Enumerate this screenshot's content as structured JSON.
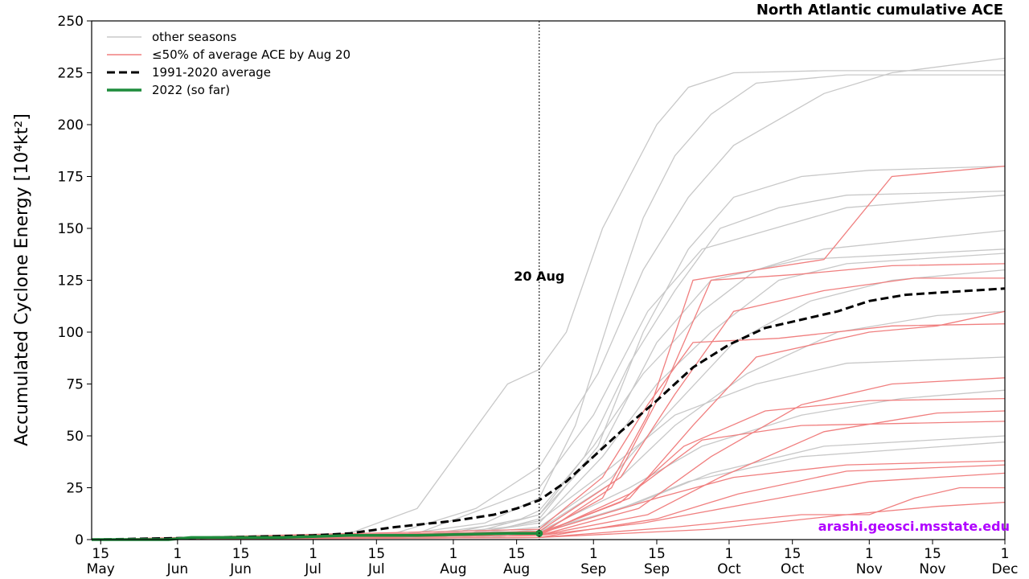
{
  "chart_data": {
    "type": "line",
    "title": "North Atlantic cumulative ACE",
    "ylabel": "Accumulated Cyclone Energy [10⁴kt²]",
    "xlabel": "",
    "ylim": [
      0,
      250
    ],
    "xlim_day_of_year": [
      133,
      335
    ],
    "grid": false,
    "legend_position": "top-left",
    "yticks": [
      "0",
      "25",
      "50",
      "75",
      "100",
      "125",
      "150",
      "175",
      "200",
      "225",
      "250"
    ],
    "xticks": [
      {
        "day": 135,
        "top": "15",
        "bottom": "May"
      },
      {
        "day": 152,
        "top": "1",
        "bottom": "Jun"
      },
      {
        "day": 166,
        "top": "15",
        "bottom": "Jun"
      },
      {
        "day": 182,
        "top": "1",
        "bottom": "Jul"
      },
      {
        "day": 196,
        "top": "15",
        "bottom": "Jul"
      },
      {
        "day": 213,
        "top": "1",
        "bottom": "Aug"
      },
      {
        "day": 227,
        "top": "15",
        "bottom": "Aug"
      },
      {
        "day": 244,
        "top": "1",
        "bottom": "Sep"
      },
      {
        "day": 258,
        "top": "15",
        "bottom": "Sep"
      },
      {
        "day": 274,
        "top": "1",
        "bottom": "Oct"
      },
      {
        "day": 288,
        "top": "15",
        "bottom": "Oct"
      },
      {
        "day": 305,
        "top": "1",
        "bottom": "Nov"
      },
      {
        "day": 319,
        "top": "15",
        "bottom": "Nov"
      },
      {
        "day": 335,
        "top": "1",
        "bottom": "Dec"
      }
    ],
    "annotation": {
      "text": "20 Aug",
      "day": 232
    },
    "credit": "arashi.geosci.msstate.edu",
    "colors": {
      "other": "#c8c8c8",
      "low": "#f07f7f",
      "average": "#000000",
      "current": "#1e8c3c"
    },
    "legend": [
      {
        "label": "other seasons",
        "style": "other"
      },
      {
        "label": "≤50% of average ACE by Aug 20",
        "style": "low"
      },
      {
        "label": "1991-2020 average",
        "style": "average"
      },
      {
        "label": "2022 (so far)",
        "style": "current"
      }
    ],
    "average": {
      "name": "1991-2020 average",
      "points": [
        [
          133,
          0
        ],
        [
          160,
          1
        ],
        [
          182,
          2
        ],
        [
          190,
          3
        ],
        [
          200,
          6
        ],
        [
          213,
          9
        ],
        [
          222,
          12
        ],
        [
          227,
          15
        ],
        [
          232,
          19
        ],
        [
          238,
          28
        ],
        [
          244,
          40
        ],
        [
          250,
          52
        ],
        [
          258,
          67
        ],
        [
          266,
          83
        ],
        [
          274,
          94
        ],
        [
          282,
          102
        ],
        [
          290,
          106
        ],
        [
          298,
          110
        ],
        [
          305,
          115
        ],
        [
          313,
          118
        ],
        [
          320,
          119
        ],
        [
          335,
          121
        ]
      ]
    },
    "current": {
      "name": "2022 (so far)",
      "points": [
        [
          133,
          0
        ],
        [
          150,
          0
        ],
        [
          155,
          1
        ],
        [
          175,
          1
        ],
        [
          190,
          2
        ],
        [
          205,
          2
        ],
        [
          215,
          2.5
        ],
        [
          225,
          3
        ],
        [
          232,
          3
        ]
      ]
    },
    "other_seasons": [
      [
        [
          133,
          0
        ],
        [
          190,
          3
        ],
        [
          205,
          15
        ],
        [
          215,
          45
        ],
        [
          225,
          75
        ],
        [
          232,
          82
        ],
        [
          238,
          100
        ],
        [
          246,
          150
        ],
        [
          252,
          175
        ],
        [
          258,
          200
        ],
        [
          265,
          218
        ],
        [
          275,
          225
        ],
        [
          295,
          226
        ],
        [
          335,
          226
        ]
      ],
      [
        [
          133,
          0
        ],
        [
          200,
          2
        ],
        [
          220,
          8
        ],
        [
          232,
          20
        ],
        [
          240,
          55
        ],
        [
          248,
          110
        ],
        [
          255,
          155
        ],
        [
          262,
          185
        ],
        [
          270,
          205
        ],
        [
          280,
          220
        ],
        [
          300,
          224
        ],
        [
          335,
          224
        ]
      ],
      [
        [
          133,
          0
        ],
        [
          200,
          3
        ],
        [
          218,
          15
        ],
        [
          232,
          35
        ],
        [
          245,
          80
        ],
        [
          255,
          130
        ],
        [
          265,
          165
        ],
        [
          275,
          190
        ],
        [
          295,
          215
        ],
        [
          310,
          225
        ],
        [
          335,
          232
        ]
      ],
      [
        [
          133,
          0
        ],
        [
          205,
          2
        ],
        [
          225,
          6
        ],
        [
          232,
          10
        ],
        [
          245,
          45
        ],
        [
          255,
          100
        ],
        [
          265,
          140
        ],
        [
          275,
          165
        ],
        [
          290,
          175
        ],
        [
          305,
          178
        ],
        [
          335,
          180
        ]
      ],
      [
        [
          133,
          0
        ],
        [
          205,
          2
        ],
        [
          225,
          8
        ],
        [
          232,
          12
        ],
        [
          242,
          40
        ],
        [
          252,
          85
        ],
        [
          262,
          120
        ],
        [
          272,
          150
        ],
        [
          285,
          160
        ],
        [
          300,
          166
        ],
        [
          335,
          168
        ]
      ],
      [
        [
          133,
          0
        ],
        [
          210,
          2
        ],
        [
          228,
          10
        ],
        [
          232,
          14
        ],
        [
          244,
          45
        ],
        [
          255,
          80
        ],
        [
          268,
          110
        ],
        [
          280,
          130
        ],
        [
          295,
          140
        ],
        [
          335,
          149
        ]
      ],
      [
        [
          133,
          0
        ],
        [
          210,
          1
        ],
        [
          232,
          8
        ],
        [
          246,
          40
        ],
        [
          258,
          75
        ],
        [
          270,
          100
        ],
        [
          285,
          125
        ],
        [
          300,
          133
        ],
        [
          335,
          138
        ]
      ],
      [
        [
          133,
          0
        ],
        [
          212,
          2
        ],
        [
          232,
          6
        ],
        [
          248,
          30
        ],
        [
          260,
          60
        ],
        [
          275,
          95
        ],
        [
          292,
          115
        ],
        [
          310,
          125
        ],
        [
          335,
          130
        ]
      ],
      [
        [
          133,
          0
        ],
        [
          215,
          1
        ],
        [
          232,
          5
        ],
        [
          250,
          30
        ],
        [
          262,
          55
        ],
        [
          278,
          80
        ],
        [
          298,
          100
        ],
        [
          320,
          108
        ],
        [
          335,
          110
        ]
      ],
      [
        [
          133,
          0
        ],
        [
          215,
          2
        ],
        [
          232,
          9
        ],
        [
          248,
          35
        ],
        [
          262,
          60
        ],
        [
          280,
          75
        ],
        [
          300,
          85
        ],
        [
          335,
          88
        ]
      ],
      [
        [
          133,
          0
        ],
        [
          218,
          1
        ],
        [
          232,
          4
        ],
        [
          252,
          25
        ],
        [
          268,
          45
        ],
        [
          290,
          60
        ],
        [
          312,
          68
        ],
        [
          335,
          72
        ]
      ],
      [
        [
          133,
          0
        ],
        [
          220,
          1
        ],
        [
          232,
          3
        ],
        [
          254,
          18
        ],
        [
          270,
          32
        ],
        [
          295,
          45
        ],
        [
          335,
          50
        ]
      ],
      [
        [
          133,
          0
        ],
        [
          222,
          1
        ],
        [
          232,
          4
        ],
        [
          250,
          15
        ],
        [
          265,
          28
        ],
        [
          290,
          40
        ],
        [
          335,
          47
        ]
      ],
      [
        [
          133,
          0
        ],
        [
          205,
          3
        ],
        [
          232,
          25
        ],
        [
          244,
          60
        ],
        [
          256,
          110
        ],
        [
          268,
          140
        ],
        [
          284,
          150
        ],
        [
          300,
          160
        ],
        [
          335,
          166
        ]
      ],
      [
        [
          133,
          0
        ],
        [
          215,
          2
        ],
        [
          232,
          12
        ],
        [
          246,
          45
        ],
        [
          258,
          95
        ],
        [
          270,
          125
        ],
        [
          290,
          135
        ],
        [
          335,
          140
        ]
      ]
    ],
    "low_seasons": [
      [
        [
          133,
          0
        ],
        [
          232,
          3
        ],
        [
          246,
          20
        ],
        [
          256,
          60
        ],
        [
          266,
          125
        ],
        [
          280,
          130
        ],
        [
          295,
          135
        ],
        [
          310,
          175
        ],
        [
          335,
          180
        ]
      ],
      [
        [
          133,
          0
        ],
        [
          232,
          2
        ],
        [
          248,
          25
        ],
        [
          260,
          75
        ],
        [
          270,
          125
        ],
        [
          290,
          128
        ],
        [
          310,
          132
        ],
        [
          335,
          133
        ]
      ],
      [
        [
          133,
          0
        ],
        [
          232,
          4
        ],
        [
          250,
          30
        ],
        [
          262,
          70
        ],
        [
          275,
          110
        ],
        [
          295,
          120
        ],
        [
          315,
          126
        ],
        [
          335,
          126
        ]
      ],
      [
        [
          133,
          0
        ],
        [
          232,
          3
        ],
        [
          252,
          20
        ],
        [
          266,
          55
        ],
        [
          280,
          88
        ],
        [
          305,
          100
        ],
        [
          320,
          103
        ],
        [
          335,
          110
        ]
      ],
      [
        [
          133,
          0
        ],
        [
          232,
          2
        ],
        [
          254,
          15
        ],
        [
          270,
          40
        ],
        [
          290,
          65
        ],
        [
          310,
          75
        ],
        [
          335,
          78
        ]
      ],
      [
        [
          133,
          0
        ],
        [
          232,
          3
        ],
        [
          250,
          18
        ],
        [
          264,
          45
        ],
        [
          282,
          62
        ],
        [
          305,
          67
        ],
        [
          335,
          68
        ]
      ],
      [
        [
          133,
          0
        ],
        [
          232,
          2
        ],
        [
          256,
          12
        ],
        [
          272,
          30
        ],
        [
          295,
          52
        ],
        [
          320,
          61
        ],
        [
          335,
          62
        ]
      ],
      [
        [
          133,
          0
        ],
        [
          232,
          1
        ],
        [
          258,
          10
        ],
        [
          276,
          22
        ],
        [
          300,
          33
        ],
        [
          335,
          36
        ]
      ],
      [
        [
          133,
          0
        ],
        [
          232,
          2
        ],
        [
          255,
          8
        ],
        [
          280,
          18
        ],
        [
          305,
          28
        ],
        [
          335,
          32
        ]
      ],
      [
        [
          133,
          0
        ],
        [
          232,
          1
        ],
        [
          262,
          6
        ],
        [
          290,
          12
        ],
        [
          305,
          12
        ],
        [
          315,
          20
        ],
        [
          325,
          25
        ],
        [
          335,
          25
        ]
      ],
      [
        [
          133,
          0
        ],
        [
          232,
          1
        ],
        [
          270,
          5
        ],
        [
          300,
          12
        ],
        [
          320,
          16
        ],
        [
          335,
          18
        ]
      ],
      [
        [
          133,
          0
        ],
        [
          232,
          5
        ],
        [
          246,
          30
        ],
        [
          256,
          65
        ],
        [
          266,
          95
        ],
        [
          285,
          97
        ],
        [
          310,
          103
        ],
        [
          335,
          104
        ]
      ],
      [
        [
          133,
          0
        ],
        [
          232,
          2
        ],
        [
          252,
          22
        ],
        [
          268,
          48
        ],
        [
          290,
          55
        ],
        [
          335,
          57
        ]
      ],
      [
        [
          133,
          0
        ],
        [
          232,
          3
        ],
        [
          258,
          20
        ],
        [
          275,
          30
        ],
        [
          300,
          36
        ],
        [
          335,
          38
        ]
      ]
    ]
  }
}
